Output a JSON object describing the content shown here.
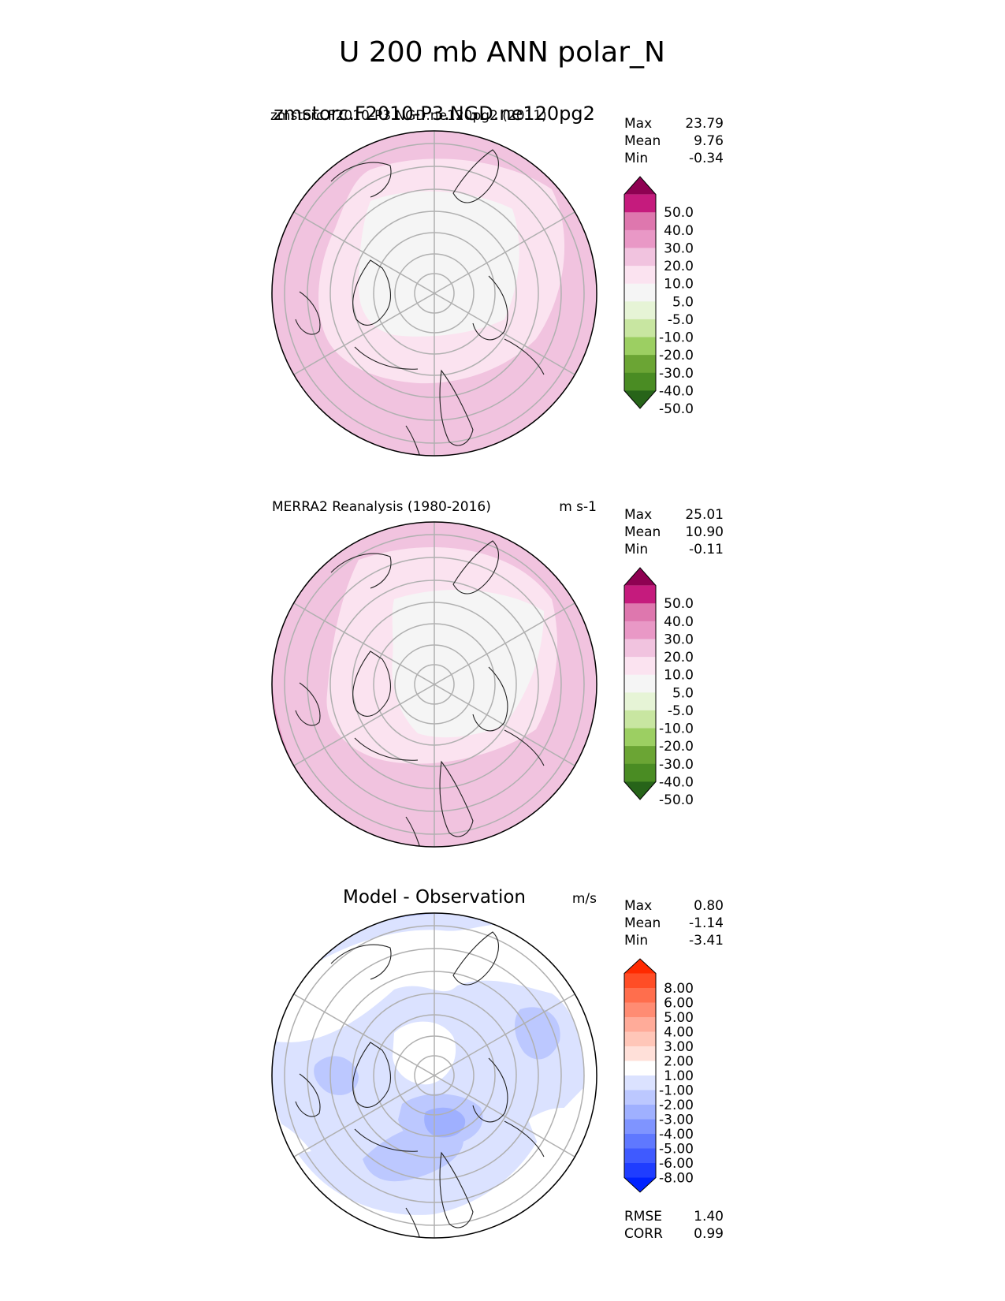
{
  "figure": {
    "title": "U 200 mb ANN polar_N"
  },
  "panels": [
    {
      "id": "test",
      "title_overlap_a": "zmstorc.F2010-P3.NGD.ne120pg2 (2011)",
      "title_overlap_b": "zmstorc.F2010-P3.NGD.ne120pg2",
      "units": "",
      "stats": {
        "labels": [
          "Max",
          "Mean",
          "Min"
        ],
        "values": [
          "23.79",
          "9.76",
          "-0.34"
        ]
      },
      "colorbar": {
        "ticks": [
          "50.0",
          "40.0",
          "30.0",
          "20.0",
          "10.0",
          "5.0",
          "-5.0",
          "-10.0",
          "-20.0",
          "-30.0",
          "-40.0",
          "-50.0"
        ],
        "colors": [
          "#8e0152",
          "#c51b7d",
          "#de77ae",
          "#e998c6",
          "#f1c3df",
          "#fbe3f0",
          "#f5f5f5",
          "#e6f4d6",
          "#c8e6a1",
          "#9ccf62",
          "#6ba534",
          "#4a8c23",
          "#276419"
        ]
      },
      "extra_stats": null
    },
    {
      "id": "reference",
      "title_left": "MERRA2 Reanalysis (1980-2016)",
      "units": "m s-1",
      "stats": {
        "labels": [
          "Max",
          "Mean",
          "Min"
        ],
        "values": [
          "25.01",
          "10.90",
          "-0.11"
        ]
      },
      "colorbar": {
        "ticks": [
          "50.0",
          "40.0",
          "30.0",
          "20.0",
          "10.0",
          "5.0",
          "-5.0",
          "-10.0",
          "-20.0",
          "-30.0",
          "-40.0",
          "-50.0"
        ],
        "colors": [
          "#8e0152",
          "#c51b7d",
          "#de77ae",
          "#e998c6",
          "#f1c3df",
          "#fbe3f0",
          "#f5f5f5",
          "#e6f4d6",
          "#c8e6a1",
          "#9ccf62",
          "#6ba534",
          "#4a8c23",
          "#276419"
        ]
      },
      "extra_stats": null
    },
    {
      "id": "difference",
      "title_center": "Model - Observation",
      "units": "m/s",
      "stats": {
        "labels": [
          "Max",
          "Mean",
          "Min"
        ],
        "values": [
          "0.80",
          "-1.14",
          "-3.41"
        ]
      },
      "colorbar": {
        "ticks": [
          "8.00",
          "6.00",
          "5.00",
          "4.00",
          "3.00",
          "2.00",
          "1.00",
          "-1.00",
          "-2.00",
          "-3.00",
          "-4.00",
          "-5.00",
          "-6.00",
          "-8.00"
        ],
        "colors": [
          "#ff2a00",
          "#ff4d26",
          "#ff6e4d",
          "#ff8c73",
          "#ffab99",
          "#ffc6b8",
          "#ffe0d9",
          "#ffffff",
          "#dbe2ff",
          "#bcc8ff",
          "#9fb0ff",
          "#7f94ff",
          "#5f78ff",
          "#3f5aff",
          "#1f3dff",
          "#0022ff"
        ]
      },
      "extra_stats": {
        "labels": [
          "RMSE",
          "CORR"
        ],
        "values": [
          "1.40",
          "0.99"
        ]
      }
    }
  ],
  "chart_data": [
    {
      "type": "heatmap",
      "projection": "north polar stereographic",
      "title": "zmstorc.F2010-P3.NGD.ne120pg2 (2011)",
      "variable": "U 200 mb ANN polar_N",
      "max": 23.79,
      "mean": 9.76,
      "min": -0.34,
      "colorbar_levels": [
        -50,
        -40,
        -30,
        -20,
        -10,
        -5,
        5,
        10,
        20,
        30,
        40,
        50
      ],
      "colorbar_extend": "both"
    },
    {
      "type": "heatmap",
      "projection": "north polar stereographic",
      "title": "MERRA2 Reanalysis (1980-2016)",
      "units": "m s-1",
      "max": 25.01,
      "mean": 10.9,
      "min": -0.11,
      "colorbar_levels": [
        -50,
        -40,
        -30,
        -20,
        -10,
        -5,
        5,
        10,
        20,
        30,
        40,
        50
      ],
      "colorbar_extend": "both"
    },
    {
      "type": "heatmap",
      "projection": "north polar stereographic",
      "title": "Model - Observation",
      "units": "m/s",
      "max": 0.8,
      "mean": -1.14,
      "min": -3.41,
      "rmse": 1.4,
      "corr": 0.99,
      "colorbar_levels": [
        -8,
        -6,
        -5,
        -4,
        -3,
        -2,
        -1,
        1,
        2,
        3,
        4,
        5,
        6,
        8
      ],
      "colorbar_extend": "both"
    }
  ]
}
